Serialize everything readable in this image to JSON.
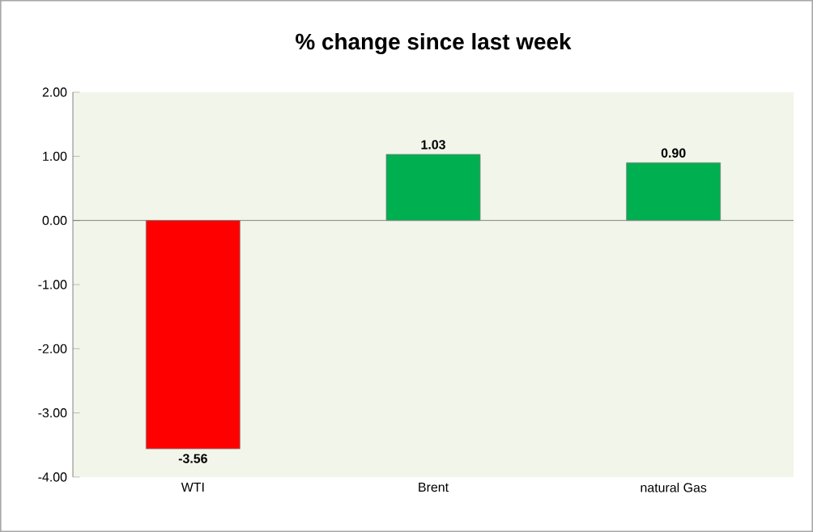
{
  "chart_data": {
    "type": "bar",
    "title": "% change since last week",
    "categories": [
      "WTI",
      "Brent",
      "natural Gas"
    ],
    "values": [
      -3.56,
      1.03,
      0.9
    ],
    "colors": [
      "#ff0000",
      "#00b050",
      "#00b050"
    ],
    "ylim": [
      -4,
      2
    ],
    "value_labels": [
      "-3.56",
      "1.03",
      "0.90"
    ],
    "yticks": [
      {
        "value": -4,
        "label": "-4.00"
      },
      {
        "value": -3,
        "label": "-3.00"
      },
      {
        "value": -2,
        "label": "-2.00"
      },
      {
        "value": -1,
        "label": "-1.00"
      },
      {
        "value": 0,
        "label": "0.00"
      },
      {
        "value": 1,
        "label": "1.00"
      },
      {
        "value": 2,
        "label": "2.00"
      }
    ]
  }
}
